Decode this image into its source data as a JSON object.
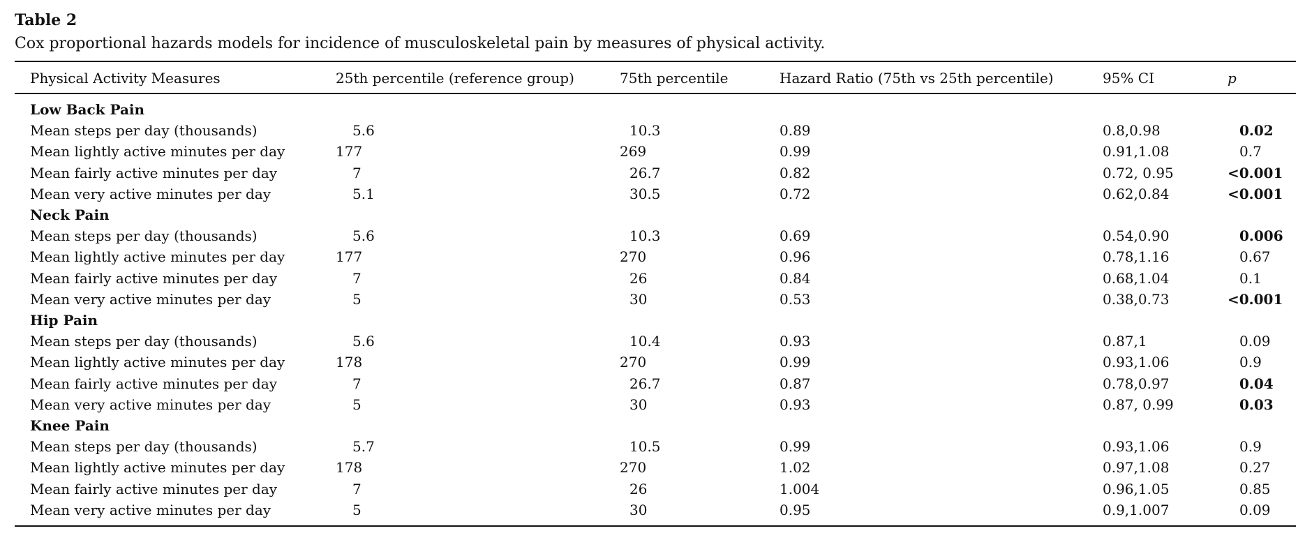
{
  "title": "Table 2",
  "caption": "Cox proportional hazards models for incidence of musculoskeletal pain by measures of physical activity.",
  "table": {
    "header": [
      "Physical Activity Measures",
      "25th percentile (reference group)",
      "75th percentile",
      "Hazard Ratio (75th vs 25th percentile)",
      "95% CI",
      "p"
    ],
    "groups": [
      {
        "name": "Low Back Pain",
        "rows": [
          {
            "cells": [
              "Mean steps per day (thousands)",
              "5.6",
              "10.3",
              "0.89",
              "0.8,0.98",
              "0.02"
            ],
            "p_bold": true
          },
          {
            "cells": [
              "Mean lightly active minutes per day",
              "177",
              "269",
              "0.99",
              "0.91,1.08",
              "0.7"
            ],
            "p_bold": false
          },
          {
            "cells": [
              "Mean fairly active minutes per day",
              "7",
              "26.7",
              "0.82",
              "0.72, 0.95",
              "<0.001"
            ],
            "p_bold": true
          },
          {
            "cells": [
              "Mean very active minutes per day",
              "5.1",
              "30.5",
              "0.72",
              "0.62,0.84",
              "<0.001"
            ],
            "p_bold": true
          }
        ]
      },
      {
        "name": "Neck Pain",
        "rows": [
          {
            "cells": [
              "Mean steps per day (thousands)",
              "5.6",
              "10.3",
              "0.69",
              "0.54,0.90",
              "0.006"
            ],
            "p_bold": true
          },
          {
            "cells": [
              "Mean lightly active minutes per day",
              "177",
              "270",
              "0.96",
              "0.78,1.16",
              "0.67"
            ],
            "p_bold": false
          },
          {
            "cells": [
              "Mean fairly active minutes per day",
              "7",
              "26",
              "0.84",
              "0.68,1.04",
              "0.1"
            ],
            "p_bold": false
          },
          {
            "cells": [
              "Mean very active minutes per day",
              "5",
              "30",
              "0.53",
              "0.38,0.73",
              "<0.001"
            ],
            "p_bold": true
          }
        ]
      },
      {
        "name": "Hip Pain",
        "rows": [
          {
            "cells": [
              "Mean steps per day (thousands)",
              "5.6",
              "10.4",
              "0.93",
              "0.87,1",
              "0.09"
            ],
            "p_bold": false
          },
          {
            "cells": [
              "Mean lightly active minutes per day",
              "178",
              "270",
              "0.99",
              "0.93,1.06",
              "0.9"
            ],
            "p_bold": false
          },
          {
            "cells": [
              "Mean fairly active minutes per day",
              "7",
              "26.7",
              "0.87",
              "0.78,0.97",
              "0.04"
            ],
            "p_bold": true
          },
          {
            "cells": [
              "Mean very active minutes per day",
              "5",
              "30",
              "0.93",
              "0.87, 0.99",
              "0.03"
            ],
            "p_bold": true
          }
        ]
      },
      {
        "name": "Knee Pain",
        "rows": [
          {
            "cells": [
              "Mean steps per day (thousands)",
              "5.7",
              "10.5",
              "0.99",
              "0.93,1.06",
              "0.9"
            ],
            "p_bold": false
          },
          {
            "cells": [
              "Mean lightly active minutes per day",
              "178",
              "270",
              "1.02",
              "0.97,1.08",
              "0.27"
            ],
            "p_bold": false
          },
          {
            "cells": [
              "Mean fairly active minutes per day",
              "7",
              "26",
              "1.004",
              "0.96,1.05",
              "0.85"
            ],
            "p_bold": false
          },
          {
            "cells": [
              "Mean very active minutes per day",
              "5",
              "30",
              "0.95",
              "0.9,1.007",
              "0.09"
            ],
            "p_bold": false
          }
        ]
      }
    ]
  }
}
